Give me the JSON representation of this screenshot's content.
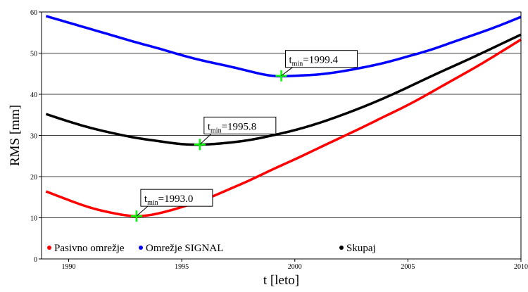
{
  "chart_data": {
    "type": "line",
    "title": "",
    "xlabel": "t [leto]",
    "ylabel": "RMS [mm]",
    "xlim": [
      1988.8,
      2010
    ],
    "ylim": [
      0,
      60
    ],
    "xticks": [
      1990,
      1995,
      2000,
      2005,
      2010
    ],
    "yticks": [
      0,
      10,
      20,
      30,
      40,
      50,
      60
    ],
    "grid": "horizontal",
    "legend_position": "bottom",
    "series": [
      {
        "name": "Pasivno omrežje",
        "color": "#ff0000",
        "x": [
          1989,
          1990,
          1991,
          1992,
          1993,
          1994,
          1995,
          1996,
          1997,
          1998,
          1999,
          2000,
          2001,
          2002,
          2003,
          2004,
          2005,
          2006,
          2007,
          2008,
          2009,
          2010
        ],
        "y": [
          16.4,
          14.3,
          12.4,
          11.1,
          10.4,
          11.1,
          12.6,
          14.4,
          16.7,
          19.1,
          21.7,
          24.2,
          26.8,
          29.4,
          32.0,
          34.7,
          37.4,
          40.4,
          43.5,
          46.6,
          49.9,
          53.3
        ]
      },
      {
        "name": "Omrežje SIGNAL",
        "color": "#0000ff",
        "x": [
          1989,
          1990,
          1991,
          1992,
          1993,
          1994,
          1995,
          1996,
          1997,
          1998,
          1999,
          2000,
          2001,
          2002,
          2003,
          2004,
          2005,
          2006,
          2007,
          2008,
          2009,
          2010
        ],
        "y": [
          59.0,
          57.4,
          55.8,
          54.2,
          52.6,
          51.1,
          49.5,
          48.1,
          46.9,
          45.6,
          44.5,
          44.5,
          44.8,
          45.5,
          46.5,
          47.7,
          49.2,
          50.8,
          52.7,
          54.6,
          56.6,
          58.8
        ]
      },
      {
        "name": "Skupaj",
        "color": "#000000",
        "x": [
          1989,
          1990,
          1991,
          1992,
          1993,
          1994,
          1995,
          1996,
          1997,
          1998,
          1999,
          2000,
          2001,
          2002,
          2003,
          2004,
          2005,
          2006,
          2007,
          2008,
          2009,
          2010
        ],
        "y": [
          35.2,
          33.4,
          31.8,
          30.5,
          29.4,
          28.6,
          27.9,
          27.8,
          28.2,
          28.9,
          30.0,
          31.3,
          32.9,
          34.8,
          36.9,
          39.2,
          41.7,
          44.3,
          46.8,
          49.3,
          51.9,
          54.5
        ]
      }
    ],
    "annotations": [
      {
        "label_main": "t",
        "label_sub": "min",
        "label_value": "=1999.4",
        "x": 1999.4,
        "y": 44.5
      },
      {
        "label_main": "t",
        "label_sub": "min",
        "label_value": "=1995.8",
        "x": 1995.8,
        "y": 27.8
      },
      {
        "label_main": "t",
        "label_sub": "min",
        "label_value": "=1993.0",
        "x": 1993.0,
        "y": 10.4
      }
    ],
    "marker_color": "#00ff00"
  }
}
